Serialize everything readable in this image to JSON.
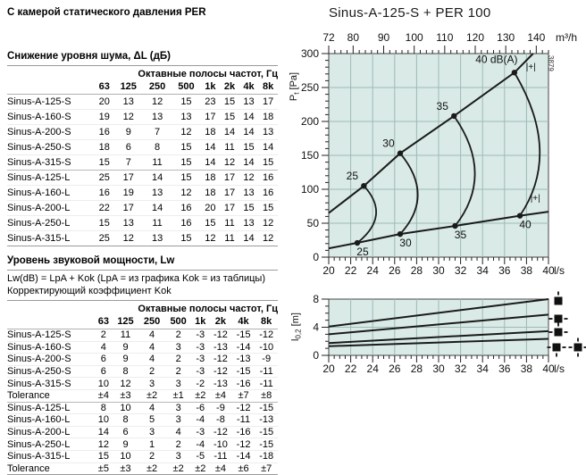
{
  "page": {
    "heading": "С камерой статического давления PER"
  },
  "noise_section": {
    "title": "Снижение уровня шума, ΔL (дБ)",
    "octave_header": "Октавные полосы частот, Гц",
    "freq_cols": [
      "63",
      "125",
      "250",
      "500",
      "1k",
      "2k",
      "4k",
      "8k"
    ],
    "groups": [
      [
        [
          "Sinus-A-125-S",
          "20",
          "13",
          "12",
          "15",
          "23",
          "15",
          "13",
          "17"
        ],
        [
          "Sinus-A-160-S",
          "19",
          "12",
          "13",
          "13",
          "17",
          "15",
          "14",
          "18"
        ],
        [
          "Sinus-A-200-S",
          "16",
          "9",
          "7",
          "12",
          "18",
          "14",
          "14",
          "13"
        ],
        [
          "Sinus-A-250-S",
          "18",
          "6",
          "8",
          "15",
          "14",
          "11",
          "15",
          "14"
        ],
        [
          "Sinus-A-315-S",
          "15",
          "7",
          "11",
          "15",
          "14",
          "12",
          "14",
          "15"
        ]
      ],
      [
        [
          "Sinus-A-125-L",
          "25",
          "17",
          "14",
          "15",
          "18",
          "17",
          "12",
          "16"
        ],
        [
          "Sinus-A-160-L",
          "16",
          "19",
          "13",
          "12",
          "18",
          "17",
          "13",
          "16"
        ],
        [
          "Sinus-A-200-L",
          "22",
          "17",
          "14",
          "16",
          "20",
          "17",
          "15",
          "15"
        ],
        [
          "Sinus-A-250-L",
          "15",
          "13",
          "11",
          "16",
          "15",
          "11",
          "13",
          "12"
        ],
        [
          "Sinus-A-315-L",
          "25",
          "12",
          "13",
          "15",
          "12",
          "11",
          "14",
          "12"
        ]
      ]
    ]
  },
  "power_section": {
    "title": "Уровень звуковой мощности, Lw",
    "formula": "Lw(dB) = LpA + Kok (LpA = из графика Kok = из таблицы)",
    "subtitle": "Корректирующий коэффициент Kok",
    "octave_header": "Октавные полосы частот, Гц",
    "freq_cols": [
      "63",
      "125",
      "250",
      "500",
      "1k",
      "2k",
      "4k",
      "8k"
    ],
    "groups": [
      [
        [
          "Sinus-A-125-S",
          "2",
          "11",
          "4",
          "2",
          "-3",
          "-12",
          "-15",
          "-12"
        ],
        [
          "Sinus-A-160-S",
          "4",
          "9",
          "4",
          "3",
          "-3",
          "-13",
          "-14",
          "-10"
        ],
        [
          "Sinus-A-200-S",
          "6",
          "9",
          "4",
          "2",
          "-3",
          "-12",
          "-13",
          "-9"
        ],
        [
          "Sinus-A-250-S",
          "6",
          "8",
          "2",
          "2",
          "-3",
          "-12",
          "-15",
          "-11"
        ],
        [
          "Sinus-A-315-S",
          "10",
          "12",
          "3",
          "3",
          "-2",
          "-13",
          "-16",
          "-11"
        ],
        [
          "Tolerance",
          "±4",
          "±3",
          "±2",
          "±1",
          "±2",
          "±4",
          "±7",
          "±8"
        ]
      ],
      [
        [
          "Sinus-A-125-L",
          "8",
          "10",
          "4",
          "3",
          "-6",
          "-9",
          "-12",
          "-15"
        ],
        [
          "Sinus-A-160-L",
          "10",
          "8",
          "5",
          "3",
          "-4",
          "-8",
          "-11",
          "-13"
        ],
        [
          "Sinus-A-200-L",
          "14",
          "6",
          "3",
          "4",
          "-3",
          "-12",
          "-16",
          "-15"
        ],
        [
          "Sinus-A-250-L",
          "12",
          "9",
          "1",
          "2",
          "-4",
          "-10",
          "-12",
          "-15"
        ],
        [
          "Sinus-A-315-L",
          "15",
          "10",
          "2",
          "3",
          "-5",
          "-11",
          "-14",
          "-18"
        ],
        [
          "Tolerance",
          "±5",
          "±3",
          "±2",
          "±2",
          "±2",
          "±4",
          "±6",
          "±7"
        ]
      ]
    ]
  },
  "chart_style": {
    "plot_bg": "#d9eae7",
    "grid": "#9fb9b6",
    "line": "#1a1a1a",
    "frame": "#444444"
  },
  "chart_data": [
    {
      "type": "line",
      "title": "Sinus-A-125-S + PER 100",
      "xlabel": "l/s",
      "x2label": "m³/h",
      "ylabel": {
        "pre": "P",
        "sub": "t",
        "post": " [Pa]"
      },
      "xlim": [
        20,
        40
      ],
      "ylim": [
        0,
        300
      ],
      "x_ticks": [
        20,
        22,
        24,
        26,
        28,
        30,
        32,
        34,
        36,
        38,
        40
      ],
      "y_ticks": [
        0,
        50,
        100,
        150,
        200,
        250,
        300
      ],
      "x2_ticks": [
        72,
        80,
        90,
        100,
        110,
        120,
        130,
        140
      ],
      "series": [
        {
          "name": "fan-curve-upper",
          "points": [
            [
              20,
              65
            ],
            [
              23.2,
              105
            ],
            [
              26.5,
              153
            ],
            [
              31.4,
              208
            ],
            [
              36.9,
              272
            ],
            [
              38.6,
              300
            ]
          ]
        },
        {
          "name": "fan-curve-lower",
          "points": [
            [
              20,
              13
            ],
            [
              22.6,
              21
            ],
            [
              26.5,
              34
            ],
            [
              31.5,
              46
            ],
            [
              37.4,
              61
            ],
            [
              40,
              67
            ]
          ]
        }
      ],
      "dba_curves": [
        {
          "upper_label": "25",
          "lower_label": "25",
          "upper": [
            23.2,
            105
          ],
          "lower": [
            22.6,
            21
          ],
          "bulge": [
            24.3,
            62
          ]
        },
        {
          "upper_label": "30",
          "lower_label": "30",
          "upper": [
            26.5,
            153
          ],
          "lower": [
            26.5,
            34
          ],
          "bulge": [
            28.1,
            92
          ]
        },
        {
          "upper_label": "35",
          "lower_label": "35",
          "upper": [
            31.4,
            208
          ],
          "lower": [
            31.5,
            46
          ],
          "bulge": [
            33.3,
            124
          ]
        },
        {
          "upper_label": "40 dB(A)",
          "lower_label": "40",
          "upper": [
            36.9,
            272
          ],
          "lower": [
            37.4,
            61
          ],
          "bulge": [
            39.2,
            160
          ]
        }
      ],
      "markers": [
        {
          "text": "|+|",
          "x": 38.4,
          "y": 276
        },
        {
          "text": "|+|",
          "x": 38.8,
          "y": 83
        }
      ],
      "side_code": "3879"
    },
    {
      "type": "line",
      "xlabel": "l/s",
      "ylabel": {
        "pre": "l",
        "sub": "0,2",
        "post": " [m]"
      },
      "xlim": [
        20,
        40
      ],
      "ylim": [
        0,
        8
      ],
      "x_ticks": [
        20,
        22,
        24,
        26,
        28,
        30,
        32,
        34,
        36,
        38,
        40
      ],
      "y_ticks": [
        0,
        4,
        8
      ],
      "series": [
        {
          "name": "throw-1-way",
          "points": [
            [
              20,
              4.1
            ],
            [
              40,
              8.0
            ]
          ]
        },
        {
          "name": "throw-2-way",
          "points": [
            [
              20,
              3.0
            ],
            [
              40,
              5.8
            ]
          ]
        },
        {
          "name": "throw-3-way",
          "points": [
            [
              20,
              1.75
            ],
            [
              40,
              3.45
            ]
          ]
        },
        {
          "name": "throw-4-way",
          "points": [
            [
              20,
              1.3
            ],
            [
              40,
              2.35
            ]
          ]
        }
      ],
      "legend_icons": [
        {
          "name": "pattern-1-way",
          "directions": [
            "N"
          ]
        },
        {
          "name": "pattern-2-way",
          "directions": [
            "W",
            "E"
          ]
        },
        {
          "name": "pattern-3-way",
          "directions": [
            "N",
            "W",
            "E"
          ]
        },
        {
          "name": "pattern-4-way-a",
          "directions": [
            "W",
            "E",
            "S"
          ]
        },
        {
          "name": "pattern-4-way-b",
          "directions": [
            "N",
            "E",
            "S",
            "W"
          ]
        }
      ]
    }
  ]
}
